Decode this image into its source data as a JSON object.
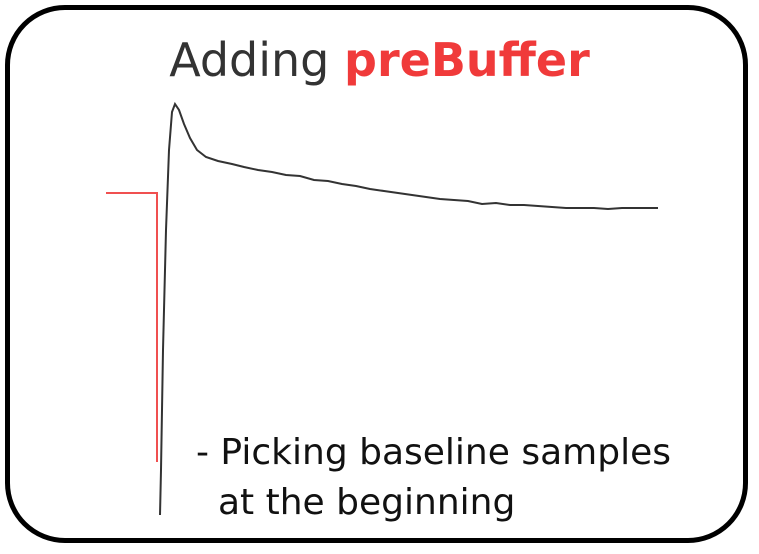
{
  "title": {
    "prefix": "Adding ",
    "highlight": "preBuffer"
  },
  "caption": {
    "line1": "- Picking baseline samples",
    "line2": "at the beginning"
  },
  "colors": {
    "highlight": "#f03a3a",
    "prebuffer_line": "#f05050",
    "signal_line": "#333333",
    "border": "#000000"
  }
}
